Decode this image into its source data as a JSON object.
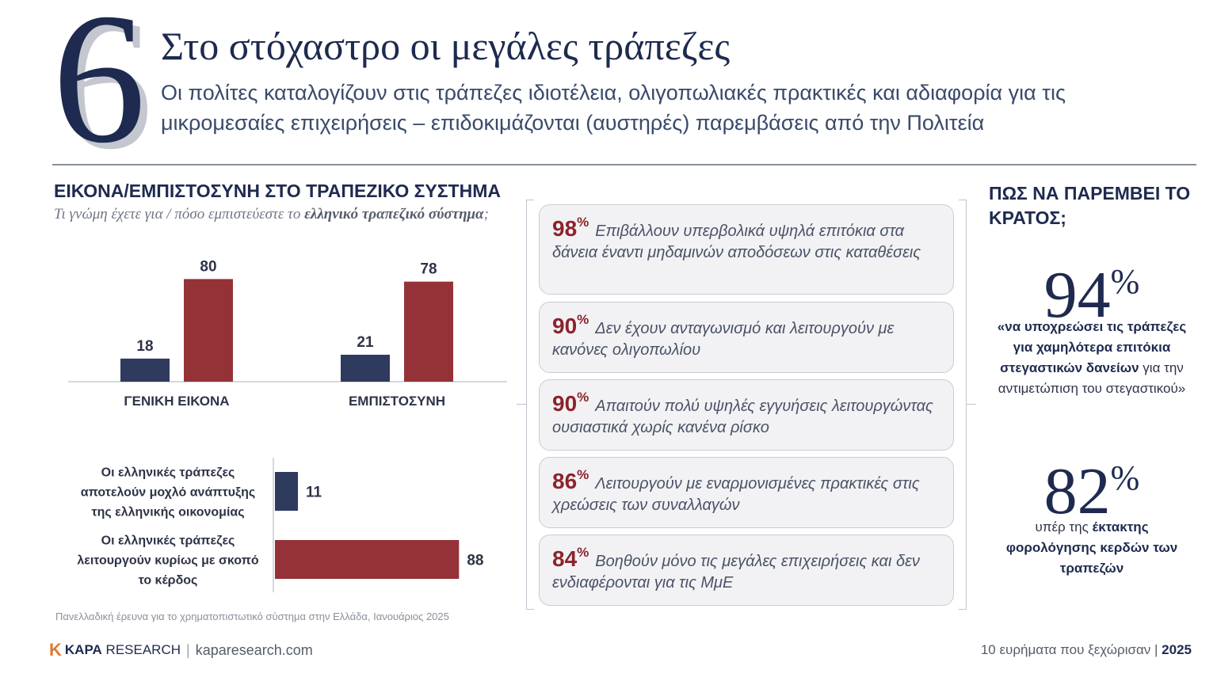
{
  "header": {
    "number": "6",
    "title": "Στο στόχαστρο οι μεγάλες τράπεζες",
    "subtitle": "Οι πολίτες καταλογίζουν στις τράπεζες ιδιοτέλεια, ολιγοπωλιακές πρακτικές και αδιαφορία για τις μικρομεσαίες επιχειρήσεις – επιδοκιμάζονται (αυστηρές) παρεμβάσεις από την Πολιτεία"
  },
  "left_section": {
    "title": "ΕΙΚΟΝΑ/ΕΜΠΙΣΤΟΣΥΝΗ ΣΤΟ ΤΡΑΠΕΖΙΚΟ ΣΥΣΤΗΜΑ",
    "question_start": "Τι γνώμη έχετε για / πόσο εμπιστεύεστε το ",
    "question_bold": "ελληνικό τραπεζικό σύστημα",
    "question_end": ";",
    "note": "Πανελλαδική έρευνα για το χρηματοπιστωτικό σύστημα στην Ελλάδα, Ιανουάριος 2025"
  },
  "chart_data": [
    {
      "type": "bar",
      "categories": [
        "ΓΕΝΙΚΗ ΕΙΚΟΝΑ",
        "ΕΜΠΙΣΤΟΣΥΝΗ"
      ],
      "series": [
        {
          "values": [
            18,
            21
          ],
          "color": "#2e3a5e"
        },
        {
          "values": [
            80,
            78
          ],
          "color": "#953237"
        }
      ],
      "ylim": [
        0,
        100
      ],
      "grid": false
    },
    {
      "type": "bar",
      "orientation": "horizontal",
      "categories": [
        [
          "Οι ελληνικές τράπεζες",
          "αποτελούν μοχλό ανάπτυξης",
          "της ελληνικής οικονομίας"
        ],
        [
          "Οι ελληνικές τράπεζες",
          "λειτουργούν κυρίως με σκοπό",
          "το κέρδος"
        ]
      ],
      "values": [
        11,
        88
      ],
      "colors": [
        "#2e3a5e",
        "#953237"
      ],
      "xlim": [
        0,
        100
      ],
      "grid": false
    }
  ],
  "statements": [
    {
      "pct": "98",
      "sign": "%",
      "text": "Επιβάλλουν υπερβολικά υψηλά επιτόκια στα δάνεια έναντι μηδαμινών αποδόσεων στις καταθέσεις"
    },
    {
      "pct": "90",
      "sign": "%",
      "text": "Δεν έχουν ανταγωνισμό και λειτουργούν με κανόνες ολιγοπωλίου"
    },
    {
      "pct": "90",
      "sign": "%",
      "text": "Απαιτούν πολύ υψηλές εγγυήσεις λειτουργώντας ουσιαστικά χωρίς κανένα ρίσκο"
    },
    {
      "pct": "86",
      "sign": "%",
      "text": "Λειτουργούν με εναρμονισμένες πρακτικές στις χρεώσεις των συναλλαγών"
    },
    {
      "pct": "84",
      "sign": "%",
      "text": "Βοηθούν μόνο τις μεγάλες επιχειρήσεις και δεν ενδιαφέρονται για τις ΜμΕ"
    }
  ],
  "right_section": {
    "title": "ΠΩΣ ΝΑ ΠΑΡΕΜΒΕΙ ΤΟ ΚΡΑΤΟΣ;",
    "stat1": {
      "value": "94",
      "sign": "%",
      "text_bold": "«να υποχρεώσει τις τράπεζες για χαμηλότερα επιτόκια στεγαστικών δανείων",
      "text_normal": " για την αντιμετώπιση του στεγαστικού»"
    },
    "stat2": {
      "value": "82",
      "sign": "%",
      "text_normal": "υπέρ της ",
      "text_bold": "έκτακτης φορολόγησης κερδών των τραπεζών"
    }
  },
  "footer": {
    "logo_mark": "K",
    "logo_bold": "KAPA",
    "logo_rest": " RESEARCH",
    "separator": "|",
    "url": "kaparesearch.com",
    "right_text": "10 ευρήματα που ξεχώρισαν",
    "right_sep": " | ",
    "year": "2025"
  }
}
